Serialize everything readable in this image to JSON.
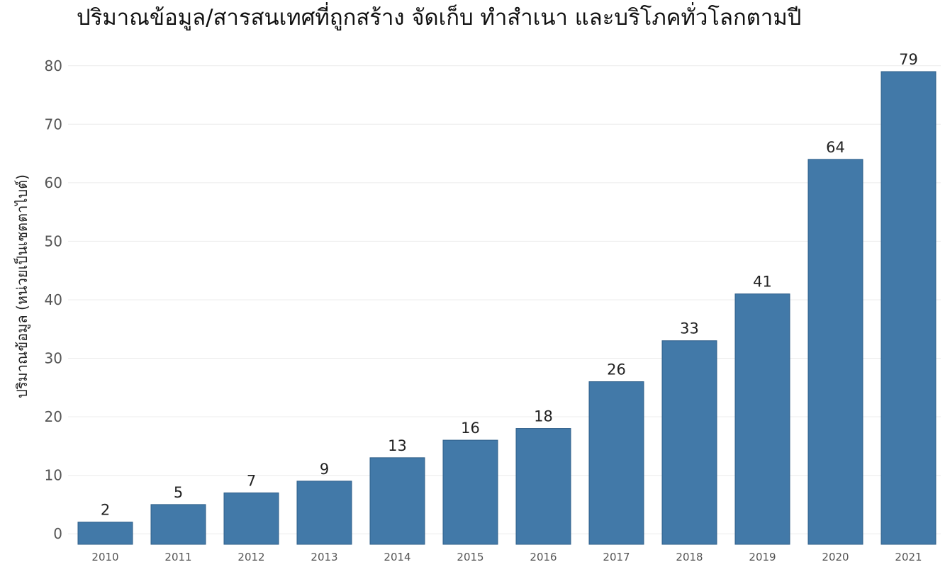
{
  "chart_data": {
    "type": "bar",
    "title": "ปริมาณข้อมูล/สารสนเทศที่ถูกสร้าง จัดเก็บ ทำสำเนา และบริโภคทั่วโลกตามปี",
    "xlabel": "",
    "ylabel": "ปริมาณข้อมูล (หน่วยเป็นเซตตาไบต์)",
    "categories": [
      "2010",
      "2011",
      "2012",
      "2013",
      "2014",
      "2015",
      "2016",
      "2017",
      "2018",
      "2019",
      "2020",
      "2021"
    ],
    "values": [
      2,
      5,
      7,
      9,
      13,
      16,
      18,
      26,
      33,
      41,
      64,
      79
    ],
    "data_labels": [
      "2",
      "5",
      "7",
      "9",
      "13",
      "16",
      "18",
      "26",
      "33",
      "41",
      "64",
      "79"
    ],
    "yticks": [
      "0",
      "10",
      "20",
      "30",
      "40",
      "50",
      "60",
      "70",
      "80"
    ],
    "ytick_values": [
      0,
      10,
      20,
      30,
      40,
      50,
      60,
      70,
      80
    ],
    "ylim": [
      -1.8,
      83
    ],
    "grid": true,
    "legend": "none",
    "bar_color": "#4279a8",
    "bar_edge_color": "#2f5f8a",
    "grid_color": "#ececec"
  }
}
